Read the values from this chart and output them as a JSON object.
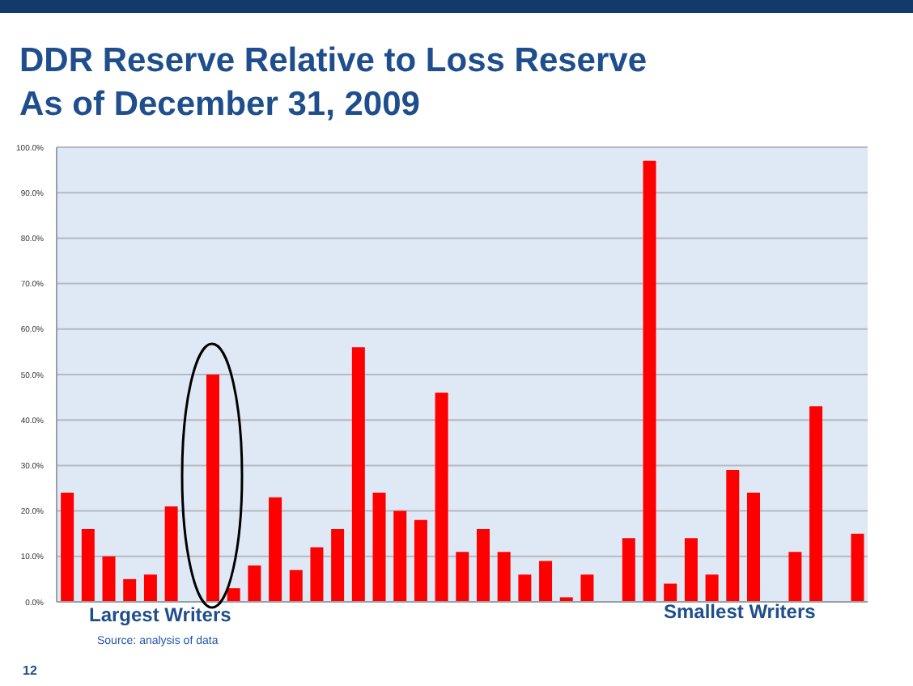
{
  "chart_data": {
    "type": "bar",
    "title": "DDR Reserve Relative to Loss Reserve",
    "subtitle": "As of December 31, 2009",
    "categories": [
      null,
      null,
      null,
      null,
      null,
      null,
      null,
      null,
      null,
      null,
      null,
      null,
      null,
      null,
      null,
      null,
      null,
      null,
      null,
      null,
      null,
      null,
      null,
      null,
      null,
      null,
      null,
      null,
      null,
      null,
      null,
      null,
      null,
      null,
      null,
      null,
      null,
      null,
      null
    ],
    "values": [
      24,
      16,
      10,
      5,
      6,
      21,
      null,
      50,
      3,
      8,
      23,
      7,
      12,
      16,
      56,
      24,
      20,
      18,
      46,
      11,
      16,
      11,
      6,
      9,
      1,
      6,
      null,
      14,
      97,
      4,
      14,
      6,
      29,
      24,
      null,
      11,
      43,
      null,
      15
    ],
    "color": "#ff0000",
    "ylim": [
      0,
      100
    ],
    "yticks": [
      {
        "value": 0,
        "label": "0.0%"
      },
      {
        "value": 10,
        "label": "10.0%"
      },
      {
        "value": 20,
        "label": "20.0%"
      },
      {
        "value": 30,
        "label": "30.0%"
      },
      {
        "value": 40,
        "label": "40.0%"
      },
      {
        "value": 50,
        "label": "50.0%"
      },
      {
        "value": 60,
        "label": "60.0%"
      },
      {
        "value": 70,
        "label": "70.0%"
      },
      {
        "value": 80,
        "label": "80.0%"
      },
      {
        "value": 90,
        "label": "90.0%"
      },
      {
        "value": 100,
        "label": "100.0%"
      }
    ],
    "grid": "y",
    "tick_labels": "y",
    "annotations": [
      "Largest Writers",
      "Smallest Writers",
      "Source: analysis of data",
      "12"
    ]
  }
}
